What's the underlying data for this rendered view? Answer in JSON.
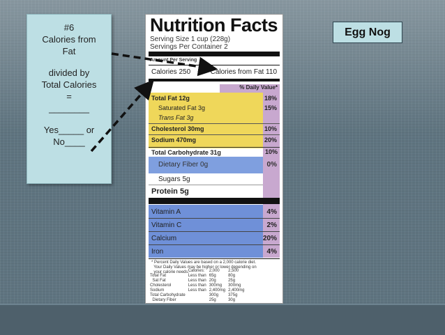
{
  "note": {
    "lines": [
      "#6",
      "Calories from",
      "Fat",
      "divided by",
      "Total Calories",
      "=",
      "________",
      "Yes_____ or",
      "No____"
    ]
  },
  "title": "Egg Nog",
  "label": {
    "heading": "Nutrition Facts",
    "serving_size": "Serving Size 1 cup (228g)",
    "servings_per_container": "Servings Per Container 2",
    "amount_per_serving": "Amount Per Serving",
    "calories": "Calories 250",
    "calories_from_fat": "Calories from Fat 110",
    "daily_value_header": "% Daily Value*",
    "nutrients": [
      {
        "name": "Total Fat 12g",
        "pct": "18%"
      },
      {
        "name": "Saturated Fat 3g",
        "pct": "15%"
      },
      {
        "name": "Trans Fat 3g",
        "pct": ""
      },
      {
        "name": "Cholesterol 30mg",
        "pct": "10%"
      },
      {
        "name": "Sodium 470mg",
        "pct": "20%"
      },
      {
        "name": "Total Carbohydrate 31g",
        "pct": "10%"
      },
      {
        "name": "Dietary Fiber 0g",
        "pct": "0%"
      },
      {
        "name": "Sugars 5g",
        "pct": ""
      },
      {
        "name": "Protein 5g",
        "pct": ""
      }
    ],
    "vitamins": [
      {
        "name": "Vitamin A",
        "pct": "4%"
      },
      {
        "name": "Vitamin C",
        "pct": "2%"
      },
      {
        "name": "Calcium",
        "pct": "20%"
      },
      {
        "name": "Iron",
        "pct": "4%"
      }
    ],
    "footnote": "* Percent Daily Values are based on a 2,000 calorie diet.\n  Your Daily Values may be higher or lower depending on\n  your calorie needs.",
    "footer_table": {
      "header": [
        "",
        "Calories:",
        "2,000",
        "2,500"
      ],
      "rows": [
        [
          "Total Fat",
          "Less than",
          "65g",
          "80g"
        ],
        [
          "  Sat Fat",
          "Less than",
          "20g",
          "25g"
        ],
        [
          "Cholesterol",
          "Less than",
          "300mg",
          "300mg"
        ],
        [
          "Sodium",
          "Less than",
          "2,400mg",
          "2,400mg"
        ],
        [
          "Total Carbohydrate",
          "",
          "300g",
          "375g"
        ],
        [
          "  Dietary Fiber",
          "",
          "25g",
          "30g"
        ]
      ]
    }
  },
  "colors": {
    "note_bg": "#bddfe4",
    "fat_yellow": "#efd75a",
    "carb_blue": "#7f9fdf",
    "vitamin_blue": "#6f90d8",
    "dv_pink": "#c8a8cf",
    "arrow": "#111111"
  }
}
